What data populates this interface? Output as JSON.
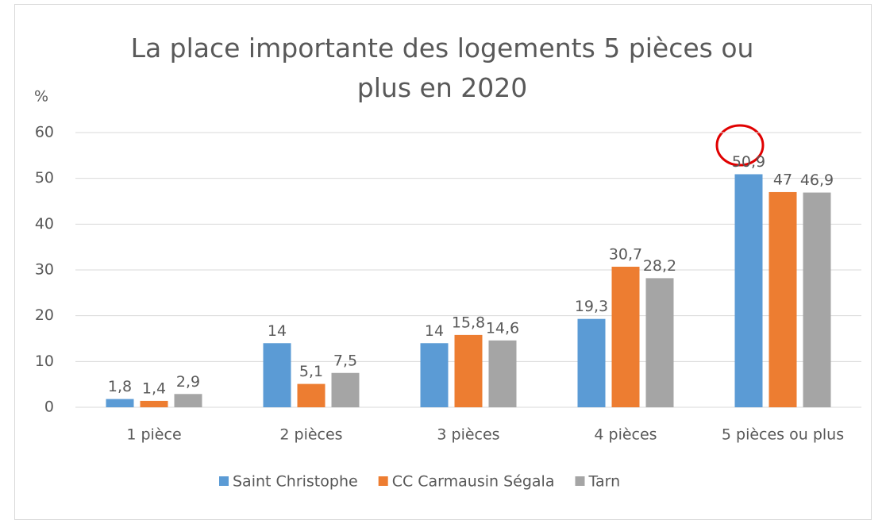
{
  "chart_data": {
    "type": "bar",
    "title": "La place importante des logements 5 pièces ou plus en 2020",
    "y_label": "%",
    "categories": [
      "1 pièce",
      "2 pièces",
      "3 pièces",
      "4 pièces",
      "5 pièces ou plus"
    ],
    "series": [
      {
        "name": "Saint Christophe",
        "color": "#5b9bd5",
        "values": [
          1.8,
          14,
          14,
          19.3,
          50.9
        ],
        "value_labels": [
          "1,8",
          "14",
          "14",
          "19,3",
          "50,9"
        ]
      },
      {
        "name": "CC Carmausin Ségala",
        "color": "#ed7d31",
        "values": [
          1.4,
          5.1,
          15.8,
          30.7,
          47
        ],
        "value_labels": [
          "1,4",
          "5,1",
          "15,8",
          "30,7",
          "47"
        ]
      },
      {
        "name": "Tarn",
        "color": "#a5a5a5",
        "values": [
          2.9,
          7.5,
          14.6,
          28.2,
          46.9
        ],
        "value_labels": [
          "2,9",
          "7,5",
          "14,6",
          "28,2",
          "46,9"
        ]
      }
    ],
    "ylim": [
      0,
      60
    ],
    "yticks": [
      0,
      10,
      20,
      30,
      40,
      50,
      60
    ],
    "grid": true,
    "legend": "bottom"
  }
}
